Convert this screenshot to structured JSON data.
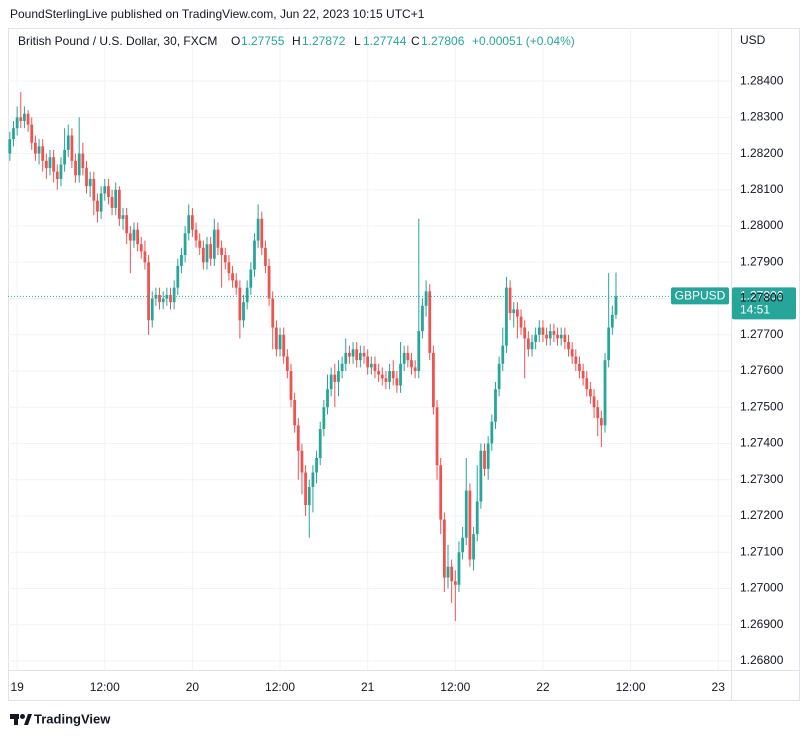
{
  "header": "PoundSterlingLive published on TradingView.com, Jun 22, 2023 10:15 UTC+1",
  "footer": "TradingView",
  "chart_data": {
    "type": "candlestick",
    "title": "British Pound / U.S. Dollar, 30, FXCM",
    "legend_labels": {
      "open": "O",
      "high": "H",
      "low": "L",
      "close": "C"
    },
    "change_label": "+0.00051 (+0.04%)",
    "symbol_tag": "GBPUSD",
    "countdown": "14:51",
    "y_axis_label": "USD",
    "up_color": "#26a69a",
    "down_color": "#ef5350",
    "grid": true,
    "ylim": [
      1.26775,
      1.28541
    ],
    "yticks": [
      {
        "value": 1.268,
        "label": "1.26800"
      },
      {
        "value": 1.269,
        "label": "1.26900"
      },
      {
        "value": 1.27,
        "label": "1.27000"
      },
      {
        "value": 1.271,
        "label": "1.27100"
      },
      {
        "value": 1.272,
        "label": "1.27200"
      },
      {
        "value": 1.273,
        "label": "1.27300"
      },
      {
        "value": 1.274,
        "label": "1.27400"
      },
      {
        "value": 1.275,
        "label": "1.27500"
      },
      {
        "value": 1.276,
        "label": "1.27600"
      },
      {
        "value": 1.277,
        "label": "1.27700"
      },
      {
        "value": 1.278,
        "label": "1.27800"
      },
      {
        "value": 1.279,
        "label": "1.27900"
      },
      {
        "value": 1.28,
        "label": "1.28000"
      },
      {
        "value": 1.281,
        "label": "1.28100"
      },
      {
        "value": 1.282,
        "label": "1.28200"
      },
      {
        "value": 1.283,
        "label": "1.28300"
      },
      {
        "value": 1.284,
        "label": "1.28400"
      }
    ],
    "categories": [
      null,
      null,
      "19",
      null,
      null,
      null,
      null,
      null,
      null,
      null,
      null,
      null,
      null,
      null,
      null,
      null,
      null,
      null,
      null,
      null,
      null,
      null,
      null,
      null,
      null,
      null,
      "12:00",
      null,
      null,
      null,
      null,
      null,
      null,
      null,
      null,
      null,
      null,
      null,
      null,
      null,
      null,
      null,
      null,
      null,
      null,
      null,
      null,
      null,
      null,
      null,
      "20",
      null,
      null,
      null,
      null,
      null,
      null,
      null,
      null,
      null,
      null,
      null,
      null,
      null,
      null,
      null,
      null,
      null,
      null,
      null,
      null,
      null,
      null,
      null,
      "12:00",
      null,
      null,
      null,
      null,
      null,
      null,
      null,
      null,
      null,
      null,
      null,
      null,
      null,
      null,
      null,
      null,
      null,
      null,
      null,
      null,
      null,
      null,
      null,
      "21",
      null,
      null,
      null,
      null,
      null,
      null,
      null,
      null,
      null,
      null,
      null,
      null,
      null,
      null,
      null,
      null,
      null,
      null,
      null,
      null,
      null,
      null,
      null,
      "12:00",
      null,
      null,
      null,
      null,
      null,
      null,
      null,
      null,
      null,
      null,
      null,
      null,
      null,
      null,
      null,
      null,
      null,
      null,
      null,
      null,
      null,
      null,
      null,
      "22",
      null,
      null,
      null,
      null,
      null,
      null,
      null,
      null,
      null,
      null,
      null,
      null,
      null,
      null,
      null,
      null,
      null,
      null,
      null,
      null,
      null,
      null,
      null,
      "12:00",
      null,
      null,
      null,
      null,
      null,
      null,
      null,
      null,
      null,
      null,
      null,
      null,
      null,
      null,
      null,
      null,
      null,
      null,
      null,
      null,
      null,
      null,
      null,
      "23",
      null,
      null,
      null
    ],
    "open": [
      1.282,
      1.2824,
      1.2827,
      1.283,
      1.2829,
      1.2831,
      1.2828,
      1.2823,
      1.282,
      1.2822,
      1.2818,
      1.2816,
      1.2819,
      1.2815,
      1.2813,
      1.2817,
      1.2821,
      1.2825,
      1.2818,
      1.2814,
      1.282,
      1.2816,
      1.2811,
      1.2813,
      1.2807,
      1.2804,
      1.2809,
      1.2811,
      1.2808,
      1.2805,
      1.281,
      1.2802,
      1.2803,
      1.2798,
      1.2796,
      1.2799,
      1.2795,
      1.2793,
      1.279,
      1.2774,
      1.278,
      1.2781,
      1.2779,
      1.278,
      1.2781,
      1.2779,
      1.2783,
      1.2789,
      1.2792,
      1.2798,
      1.2803,
      1.2799,
      1.2796,
      1.2794,
      1.279,
      1.2795,
      1.2791,
      1.2799,
      1.2794,
      1.2792,
      1.279,
      1.2787,
      1.2785,
      1.2783,
      1.2774,
      1.2779,
      1.2783,
      1.2788,
      1.2796,
      1.2802,
      1.2794,
      1.2789,
      1.278,
      1.2772,
      1.2766,
      1.277,
      1.2764,
      1.276,
      1.2752,
      1.2745,
      1.2738,
      1.2732,
      1.2723,
      1.2728,
      1.2732,
      1.2736,
      1.2744,
      1.275,
      1.2755,
      1.2759,
      1.2757,
      1.276,
      1.2762,
      1.2765,
      1.2764,
      1.2766,
      1.2763,
      1.2765,
      1.2764,
      1.2761,
      1.2762,
      1.276,
      1.2759,
      1.2758,
      1.2757,
      1.276,
      1.2758,
      1.2756,
      1.2762,
      1.2765,
      1.2763,
      1.2761,
      1.276,
      1.2771,
      1.2778,
      1.2782,
      1.2765,
      1.275,
      1.2734,
      1.2719,
      1.2703,
      1.2706,
      1.2702,
      1.2701,
      1.271,
      1.2714,
      1.2727,
      1.2708,
      1.2715,
      1.2724,
      1.2738,
      1.2733,
      1.274,
      1.2746,
      1.2755,
      1.2762,
      1.2767,
      1.2783,
      1.2776,
      1.2777,
      1.2775,
      1.2772,
      1.2769,
      1.2766,
      1.2768,
      1.277,
      1.2772,
      1.277,
      1.2769,
      1.2771,
      1.277,
      1.2769,
      1.277,
      1.2768,
      1.2766,
      1.2764,
      1.2762,
      1.276,
      1.2758,
      1.2755,
      1.2753,
      1.275,
      1.2747,
      1.2745,
      1.2763,
      1.2772,
      1.27755,
      null,
      null,
      null,
      null,
      null,
      null,
      null,
      null,
      null,
      null,
      null,
      null,
      null,
      null,
      null,
      null,
      null,
      null,
      null,
      null,
      null,
      null,
      null,
      null,
      null,
      null,
      null,
      null,
      null,
      null,
      null
    ],
    "high": [
      1.2826,
      1.2829,
      1.2833,
      1.2837,
      1.2833,
      1.2832,
      1.283,
      1.2825,
      1.2824,
      1.2824,
      1.282,
      1.2821,
      1.2821,
      1.2817,
      1.2819,
      1.2827,
      1.2828,
      1.2827,
      1.282,
      1.283,
      1.2823,
      1.2818,
      1.2815,
      1.2815,
      1.2809,
      1.2811,
      1.2813,
      1.2813,
      1.281,
      1.2812,
      1.2811,
      1.2805,
      1.2805,
      1.28,
      1.2801,
      1.2801,
      1.2797,
      1.2796,
      1.2792,
      1.2782,
      1.2783,
      1.2783,
      1.2782,
      1.2783,
      1.2783,
      1.2785,
      1.2791,
      1.2794,
      1.28,
      1.2806,
      1.2805,
      1.2801,
      1.2798,
      1.2796,
      1.2797,
      1.2797,
      1.2802,
      1.2801,
      1.2796,
      1.2794,
      1.2792,
      1.2789,
      1.2787,
      1.2785,
      1.2781,
      1.2785,
      1.279,
      1.2798,
      1.2806,
      1.2804,
      1.2796,
      1.2791,
      1.2782,
      1.2774,
      1.2772,
      1.2772,
      1.2766,
      1.2762,
      1.2754,
      1.2747,
      1.274,
      1.2734,
      1.273,
      1.2734,
      1.2738,
      1.2746,
      1.2752,
      1.2759,
      1.2761,
      1.2762,
      1.2763,
      1.2764,
      1.2769,
      1.2767,
      1.2768,
      1.2768,
      1.2767,
      1.2767,
      1.2766,
      1.2764,
      1.2764,
      1.2762,
      1.2761,
      1.276,
      1.2762,
      1.2763,
      1.276,
      1.2768,
      1.2767,
      1.2767,
      1.2765,
      1.2763,
      1.2802,
      1.278,
      1.2785,
      1.2784,
      1.2767,
      1.2752,
      1.2736,
      1.2721,
      1.2712,
      1.2708,
      1.2705,
      1.2713,
      1.2717,
      1.2736,
      1.2729,
      1.2717,
      1.2734,
      1.274,
      1.274,
      1.2742,
      1.2748,
      1.2757,
      1.2764,
      1.2772,
      1.2786,
      1.2785,
      1.2779,
      1.2779,
      1.2777,
      1.2774,
      1.2771,
      1.277,
      1.2772,
      1.2774,
      1.2774,
      1.2772,
      1.2773,
      1.2773,
      1.2772,
      1.2772,
      1.2772,
      1.277,
      1.2768,
      1.2766,
      1.2764,
      1.2762,
      1.276,
      1.2757,
      1.2755,
      1.2752,
      1.2749,
      1.2765,
      1.2787,
      1.2778,
      1.27872,
      null,
      null,
      null,
      null,
      null,
      null,
      null,
      null,
      null,
      null,
      null,
      null,
      null,
      null,
      null,
      null,
      null,
      null,
      null,
      null,
      null,
      null,
      null,
      null,
      null,
      null,
      null,
      null,
      null,
      null,
      null
    ],
    "low": [
      1.2818,
      1.2822,
      1.2825,
      1.2827,
      1.2827,
      1.2826,
      1.2821,
      1.2818,
      1.2817,
      1.2815,
      1.2813,
      1.2814,
      1.2812,
      1.281,
      1.2811,
      1.2815,
      1.2819,
      1.2816,
      1.2812,
      1.2812,
      1.2814,
      1.2809,
      1.2808,
      1.2803,
      1.2801,
      1.2802,
      1.2807,
      1.2806,
      1.2803,
      1.2803,
      1.28,
      1.2799,
      1.2795,
      1.2787,
      1.2794,
      1.2793,
      1.2791,
      1.2788,
      1.277,
      1.2772,
      1.2778,
      1.2777,
      1.2777,
      1.2778,
      1.2777,
      1.2777,
      1.2781,
      1.2787,
      1.279,
      1.2796,
      1.2797,
      1.2794,
      1.2792,
      1.2788,
      1.2788,
      1.2789,
      1.2789,
      1.2792,
      1.2783,
      1.2788,
      1.2785,
      1.2783,
      1.2781,
      1.2769,
      1.2772,
      1.2777,
      1.2781,
      1.2786,
      1.2794,
      1.2792,
      1.2787,
      1.2778,
      1.2766,
      1.2764,
      1.2764,
      1.2762,
      1.2758,
      1.275,
      1.2743,
      1.273,
      1.2726,
      1.272,
      1.2714,
      1.2721,
      1.2729,
      1.2734,
      1.2742,
      1.2748,
      1.2753,
      1.275,
      1.2753,
      1.2758,
      1.276,
      1.2762,
      1.2762,
      1.2761,
      1.2761,
      1.2762,
      1.2759,
      1.2759,
      1.2758,
      1.2757,
      1.2756,
      1.2755,
      1.2755,
      1.2756,
      1.2754,
      1.2754,
      1.276,
      1.2761,
      1.2759,
      1.2758,
      1.2758,
      1.2769,
      1.2775,
      1.2763,
      1.2748,
      1.273,
      1.2715,
      1.2699,
      1.27,
      1.2696,
      1.2691,
      1.2699,
      1.2708,
      1.2712,
      1.2706,
      1.2705,
      1.2713,
      1.2722,
      1.2731,
      1.273,
      1.2738,
      1.2744,
      1.2753,
      1.276,
      1.2765,
      1.2774,
      1.2772,
      1.2769,
      1.277,
      1.2758,
      1.2764,
      1.2764,
      1.2766,
      1.2768,
      1.2768,
      1.2767,
      1.2767,
      1.2768,
      1.2767,
      1.2767,
      1.2766,
      1.2764,
      1.2762,
      1.276,
      1.2758,
      1.2756,
      1.2753,
      1.2751,
      1.2747,
      1.2742,
      1.2739,
      1.2743,
      1.2761,
      1.277,
      1.27744,
      null,
      null,
      null,
      null,
      null,
      null,
      null,
      null,
      null,
      null,
      null,
      null,
      null,
      null,
      null,
      null,
      null,
      null,
      null,
      null,
      null,
      null,
      null,
      null,
      null,
      null,
      null,
      null,
      null,
      null,
      null
    ],
    "close": [
      1.2824,
      1.2827,
      1.283,
      1.2829,
      1.2831,
      1.2828,
      1.2823,
      1.282,
      1.2822,
      1.2818,
      1.2816,
      1.2819,
      1.2815,
      1.2813,
      1.2817,
      1.2821,
      1.2825,
      1.2818,
      1.2814,
      1.282,
      1.2816,
      1.2811,
      1.2813,
      1.2807,
      1.2804,
      1.2809,
      1.2811,
      1.2808,
      1.2805,
      1.281,
      1.2802,
      1.2803,
      1.2798,
      1.2796,
      1.2799,
      1.2795,
      1.2793,
      1.279,
      1.2774,
      1.278,
      1.2781,
      1.2779,
      1.278,
      1.2781,
      1.2779,
      1.2783,
      1.2789,
      1.2792,
      1.2798,
      1.2803,
      1.2799,
      1.2796,
      1.2794,
      1.279,
      1.2795,
      1.2791,
      1.2799,
      1.2794,
      1.2792,
      1.279,
      1.2787,
      1.2785,
      1.2783,
      1.2774,
      1.2779,
      1.2783,
      1.2788,
      1.2796,
      1.2802,
      1.2794,
      1.2789,
      1.278,
      1.2772,
      1.2766,
      1.277,
      1.2764,
      1.276,
      1.2752,
      1.2745,
      1.2738,
      1.2732,
      1.2723,
      1.2728,
      1.2732,
      1.2736,
      1.2744,
      1.275,
      1.2755,
      1.2759,
      1.2757,
      1.276,
      1.2762,
      1.2765,
      1.2764,
      1.2766,
      1.2763,
      1.2765,
      1.2764,
      1.2761,
      1.2762,
      1.276,
      1.2759,
      1.2758,
      1.2757,
      1.276,
      1.2758,
      1.2756,
      1.2762,
      1.2765,
      1.2763,
      1.2761,
      1.276,
      1.2771,
      1.2778,
      1.2782,
      1.2765,
      1.275,
      1.2734,
      1.2719,
      1.2703,
      1.2706,
      1.2702,
      1.2701,
      1.271,
      1.2714,
      1.2727,
      1.2708,
      1.2715,
      1.2724,
      1.2738,
      1.2733,
      1.274,
      1.2746,
      1.2755,
      1.2762,
      1.2767,
      1.2783,
      1.2776,
      1.2777,
      1.2775,
      1.2772,
      1.2769,
      1.2766,
      1.2768,
      1.277,
      1.2772,
      1.277,
      1.2769,
      1.2771,
      1.277,
      1.2769,
      1.277,
      1.2768,
      1.2766,
      1.2764,
      1.2762,
      1.276,
      1.2758,
      1.2755,
      1.2753,
      1.275,
      1.2747,
      1.2745,
      1.2763,
      1.2772,
      1.27755,
      1.27806,
      null,
      null,
      null,
      null,
      null,
      null,
      null,
      null,
      null,
      null,
      null,
      null,
      null,
      null,
      null,
      null,
      null,
      null,
      null,
      null,
      null,
      null,
      null,
      null,
      null,
      null,
      null,
      null,
      null,
      null,
      null
    ]
  }
}
